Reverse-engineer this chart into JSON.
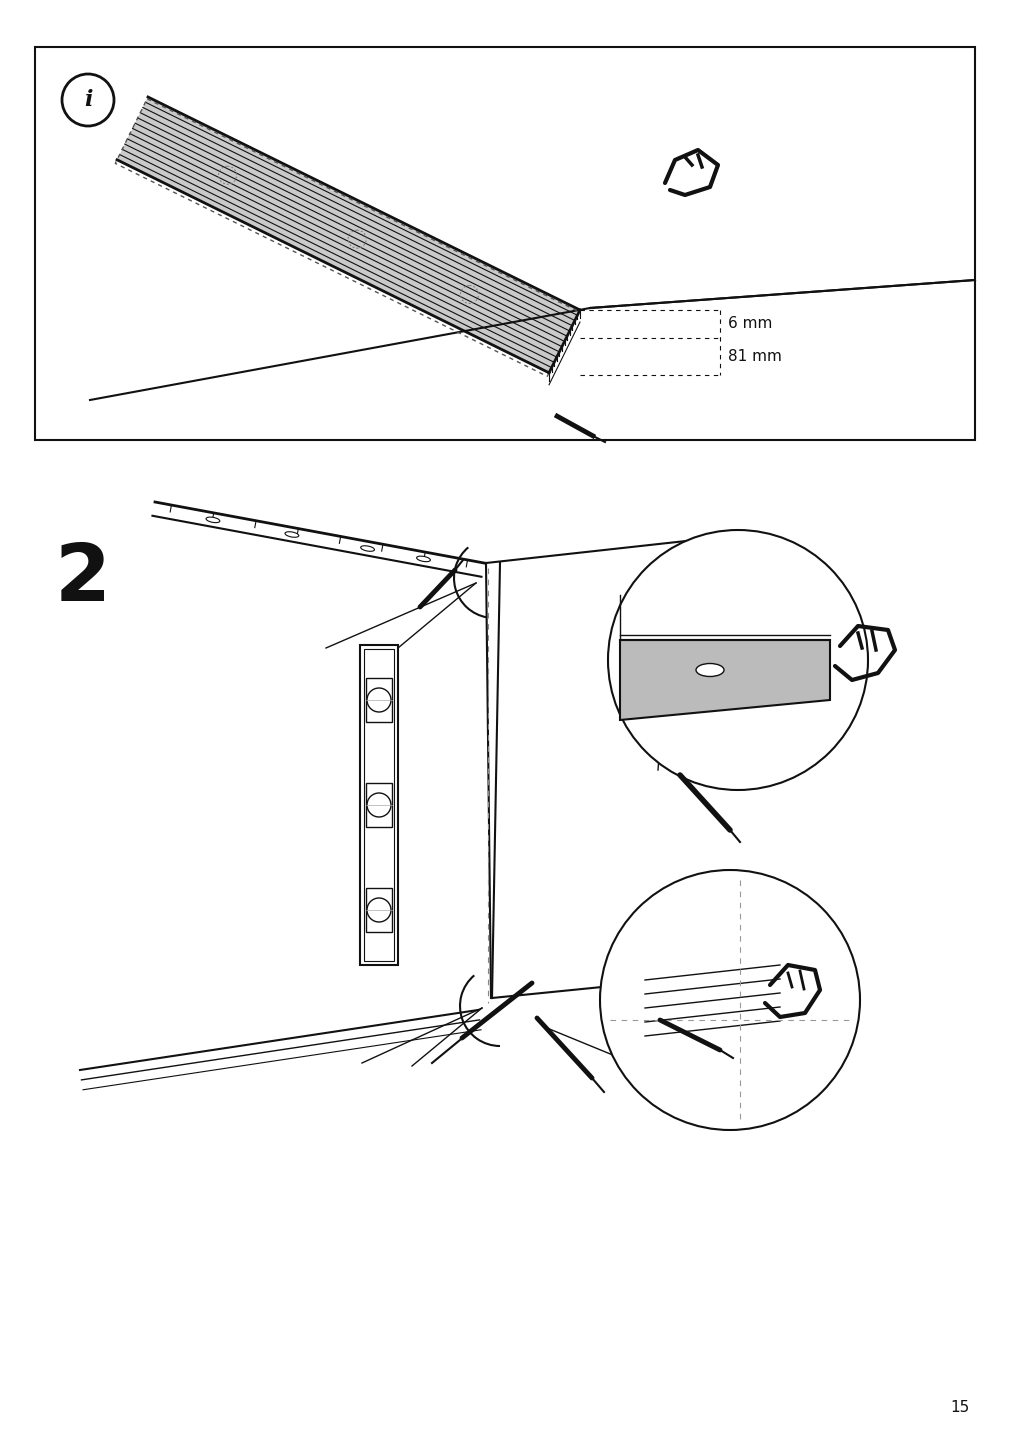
{
  "page_number": "15",
  "bg": "#ffffff",
  "ink": "#111111",
  "fig_w": 10.12,
  "fig_h": 14.32,
  "dpi": 100,
  "label_6mm": "6 mm",
  "label_81mm": "81 mm",
  "step2": "2"
}
